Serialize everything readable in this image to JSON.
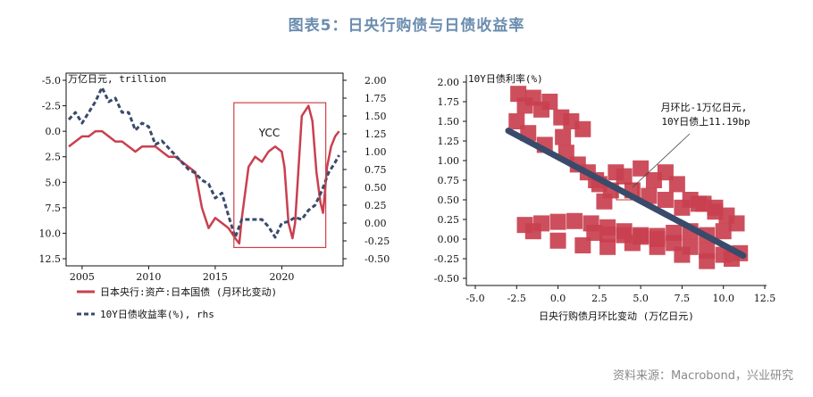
{
  "figure": {
    "title": "图表5：日央行购债与日债收益率",
    "source": "资料来源：Macrobond，兴业研究"
  },
  "colors": {
    "red": "#c9404f",
    "navy": "#3a4a6b",
    "boxRed": "#d0404a"
  },
  "chart_data": [
    {
      "type": "line",
      "left_unit_label": "万亿日元, trillion",
      "left_axis": {
        "inverted": true,
        "ylim": [
          12.5,
          -5.0
        ],
        "ticks": [
          "-5.0",
          "-2.5",
          "0.0",
          "2.5",
          "5.0",
          "7.5",
          "10.0",
          "12.5"
        ]
      },
      "right_axis": {
        "ylim": [
          -0.5,
          2.0
        ],
        "ticks": [
          "2.00",
          "1.75",
          "1.50",
          "1.25",
          "1.00",
          "0.75",
          "0.50",
          "0.25",
          "0.00",
          "-0.25",
          "-0.50"
        ]
      },
      "x_axis": {
        "xlim": [
          2003.8,
          2024.6
        ],
        "ticks": [
          "2005",
          "2010",
          "2015",
          "2020"
        ]
      },
      "annotation": {
        "text": "YCC",
        "x_range": [
          2016.4,
          2023.3
        ],
        "y_range_left": [
          11.4,
          -2.8
        ]
      },
      "legend": [
        "日本央行:资产:日本国债 (月环比变动)",
        "10Y日债收益率(%), rhs"
      ],
      "series": [
        {
          "name": "日本央行:资产:日本国债 (月环比变动)",
          "axis": "left",
          "style": "solid",
          "x": [
            2004.0,
            2004.5,
            2005.0,
            2005.5,
            2006.0,
            2006.5,
            2007.0,
            2007.5,
            2008.0,
            2008.5,
            2009.0,
            2009.5,
            2010.0,
            2010.5,
            2011.0,
            2011.5,
            2012.0,
            2012.5,
            2013.0,
            2013.5,
            2014.0,
            2014.5,
            2015.0,
            2015.5,
            2016.0,
            2016.5,
            2016.8,
            2017.0,
            2017.5,
            2018.0,
            2018.5,
            2019.0,
            2019.5,
            2020.0,
            2020.2,
            2020.5,
            2020.8,
            2021.0,
            2021.5,
            2022.0,
            2022.3,
            2022.6,
            2022.9,
            2023.1,
            2023.4,
            2023.7,
            2024.0,
            2024.3
          ],
          "y": [
            1.5,
            1.0,
            0.5,
            0.5,
            0.0,
            0.0,
            0.5,
            1.0,
            1.0,
            1.5,
            2.0,
            1.5,
            1.5,
            1.5,
            2.0,
            2.5,
            2.5,
            3.0,
            3.5,
            4.0,
            7.5,
            9.5,
            8.5,
            9.0,
            9.5,
            10.5,
            11.0,
            8.5,
            3.5,
            2.5,
            3.0,
            2.0,
            1.5,
            2.0,
            3.5,
            9.0,
            10.5,
            9.0,
            -1.5,
            -2.5,
            -1.0,
            4.0,
            7.0,
            8.0,
            3.5,
            1.5,
            0.5,
            0.0
          ]
        },
        {
          "name": "10Y日债收益率(%), rhs",
          "axis": "right",
          "style": "dashed",
          "x": [
            2004.0,
            2004.5,
            2005.0,
            2005.5,
            2006.0,
            2006.5,
            2007.0,
            2007.5,
            2008.0,
            2008.5,
            2009.0,
            2009.5,
            2010.0,
            2010.5,
            2011.0,
            2011.5,
            2012.0,
            2012.5,
            2013.0,
            2013.5,
            2014.0,
            2014.5,
            2015.0,
            2015.5,
            2016.0,
            2016.5,
            2017.0,
            2017.5,
            2018.0,
            2018.5,
            2019.0,
            2019.5,
            2020.0,
            2020.5,
            2021.0,
            2021.5,
            2022.0,
            2022.5,
            2023.0,
            2023.5,
            2024.0,
            2024.3
          ],
          "y": [
            1.45,
            1.55,
            1.4,
            1.55,
            1.7,
            1.9,
            1.7,
            1.75,
            1.55,
            1.55,
            1.3,
            1.4,
            1.35,
            1.1,
            1.15,
            1.05,
            0.95,
            0.85,
            0.75,
            0.7,
            0.6,
            0.55,
            0.35,
            0.42,
            0.1,
            -0.2,
            0.05,
            0.05,
            0.05,
            0.05,
            -0.05,
            -0.2,
            0.0,
            0.02,
            0.08,
            0.05,
            0.18,
            0.25,
            0.45,
            0.7,
            0.85,
            0.95
          ]
        }
      ]
    },
    {
      "type": "scatter",
      "x_axis": {
        "xlim": [
          -5.0,
          12.5
        ],
        "label": "日央行购债月环比变动 (万亿日元)",
        "ticks": [
          "-5.0",
          "-2.5",
          "0.0",
          "2.5",
          "5.0",
          "7.5",
          "10.0",
          "12.5"
        ]
      },
      "y_axis": {
        "ylim": [
          -0.5,
          2.0
        ],
        "label": "10Y日债利率(%)",
        "ticks": [
          "2.00",
          "1.75",
          "1.50",
          "1.25",
          "1.00",
          "0.75",
          "0.50",
          "0.25",
          "0.00",
          "-0.25",
          "-0.50"
        ]
      },
      "annotation": {
        "text_line1": "月环比-1万亿日元,",
        "text_line2": "10Y日债上11.19bp"
      },
      "fit_line": {
        "x": [
          -3.0,
          11.2
        ],
        "y": [
          1.38,
          -0.21
        ]
      },
      "points": {
        "x": [
          -2.4,
          -1.5,
          -0.5,
          0.2,
          0.8,
          1.5,
          0.3,
          -1.0,
          -2.0,
          -2.5,
          -1.8,
          -0.8,
          0.5,
          1.2,
          1.8,
          2.5,
          3.2,
          4.0,
          5.0,
          5.8,
          6.5,
          7.2,
          8.0,
          8.8,
          9.5,
          10.2,
          10.8,
          10.0,
          9.0,
          8.0,
          7.0,
          6.0,
          5.0,
          4.0,
          3.0,
          2.2,
          2.8,
          4.5,
          5.5,
          6.5,
          7.5,
          8.5,
          9.5,
          -2.0,
          -1.0,
          0.0,
          1.0,
          2.0,
          3.0,
          4.0,
          5.0,
          6.0,
          7.0,
          8.0,
          9.0,
          10.0,
          11.0,
          10.5,
          9.0,
          7.5,
          6.0,
          4.5,
          3.0,
          1.5,
          0.0,
          -1.5,
          2.3,
          3.5
        ],
        "y": [
          1.85,
          1.8,
          1.75,
          1.55,
          1.5,
          1.4,
          1.3,
          1.65,
          1.7,
          1.5,
          1.35,
          1.2,
          1.1,
          0.95,
          0.85,
          0.7,
          0.62,
          0.8,
          0.9,
          0.75,
          0.85,
          0.7,
          0.5,
          0.45,
          0.4,
          0.3,
          0.2,
          0.1,
          0.05,
          0.1,
          0.08,
          0.04,
          0.03,
          0.05,
          0.06,
          0.08,
          0.48,
          0.62,
          0.55,
          0.5,
          0.4,
          0.45,
          0.35,
          0.18,
          0.2,
          0.22,
          0.23,
          0.2,
          0.15,
          0.1,
          0.05,
          0.0,
          -0.05,
          -0.1,
          -0.15,
          -0.2,
          -0.18,
          -0.25,
          -0.28,
          -0.2,
          -0.1,
          -0.05,
          -0.1,
          -0.08,
          -0.02,
          0.1,
          0.75,
          0.85
        ]
      }
    }
  ]
}
